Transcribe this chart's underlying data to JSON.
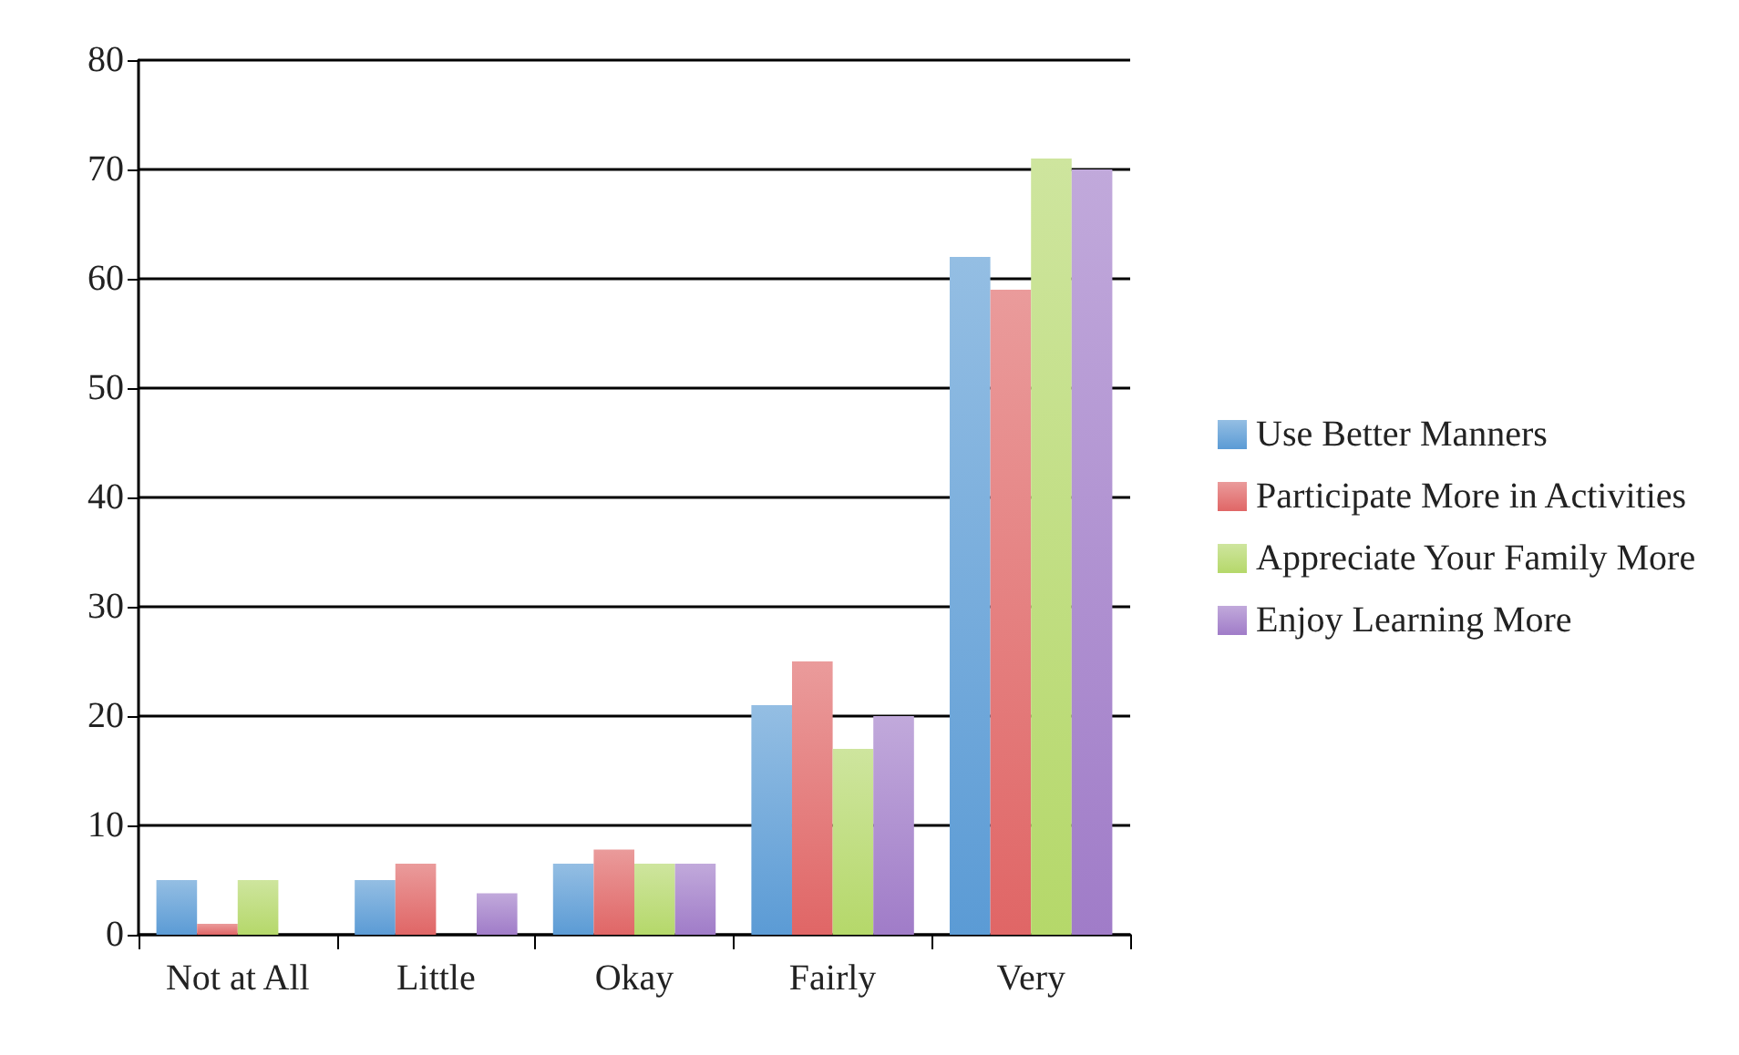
{
  "chart_data": {
    "type": "bar",
    "categories": [
      "Not at All",
      "Little",
      "Okay",
      "Fairly",
      "Very"
    ],
    "series": [
      {
        "name": "Use Better Manners",
        "color": "#5b9bd5",
        "values": [
          5,
          5,
          6.5,
          21,
          62
        ]
      },
      {
        "name": "Participate More in Activities",
        "color": "#e06666",
        "values": [
          1,
          6.5,
          7.8,
          25,
          59
        ]
      },
      {
        "name": "Appreciate Your Family More",
        "color": "#b5d86a",
        "values": [
          5,
          0,
          6.5,
          17,
          71
        ]
      },
      {
        "name": "Enjoy Learning More",
        "color": "#a07cc8",
        "values": [
          0,
          3.8,
          6.5,
          20,
          70
        ]
      }
    ],
    "ylim": [
      0,
      80
    ],
    "yticks": [
      0,
      10,
      20,
      30,
      40,
      50,
      60,
      70,
      80
    ],
    "grid": "y",
    "legend": "right"
  }
}
